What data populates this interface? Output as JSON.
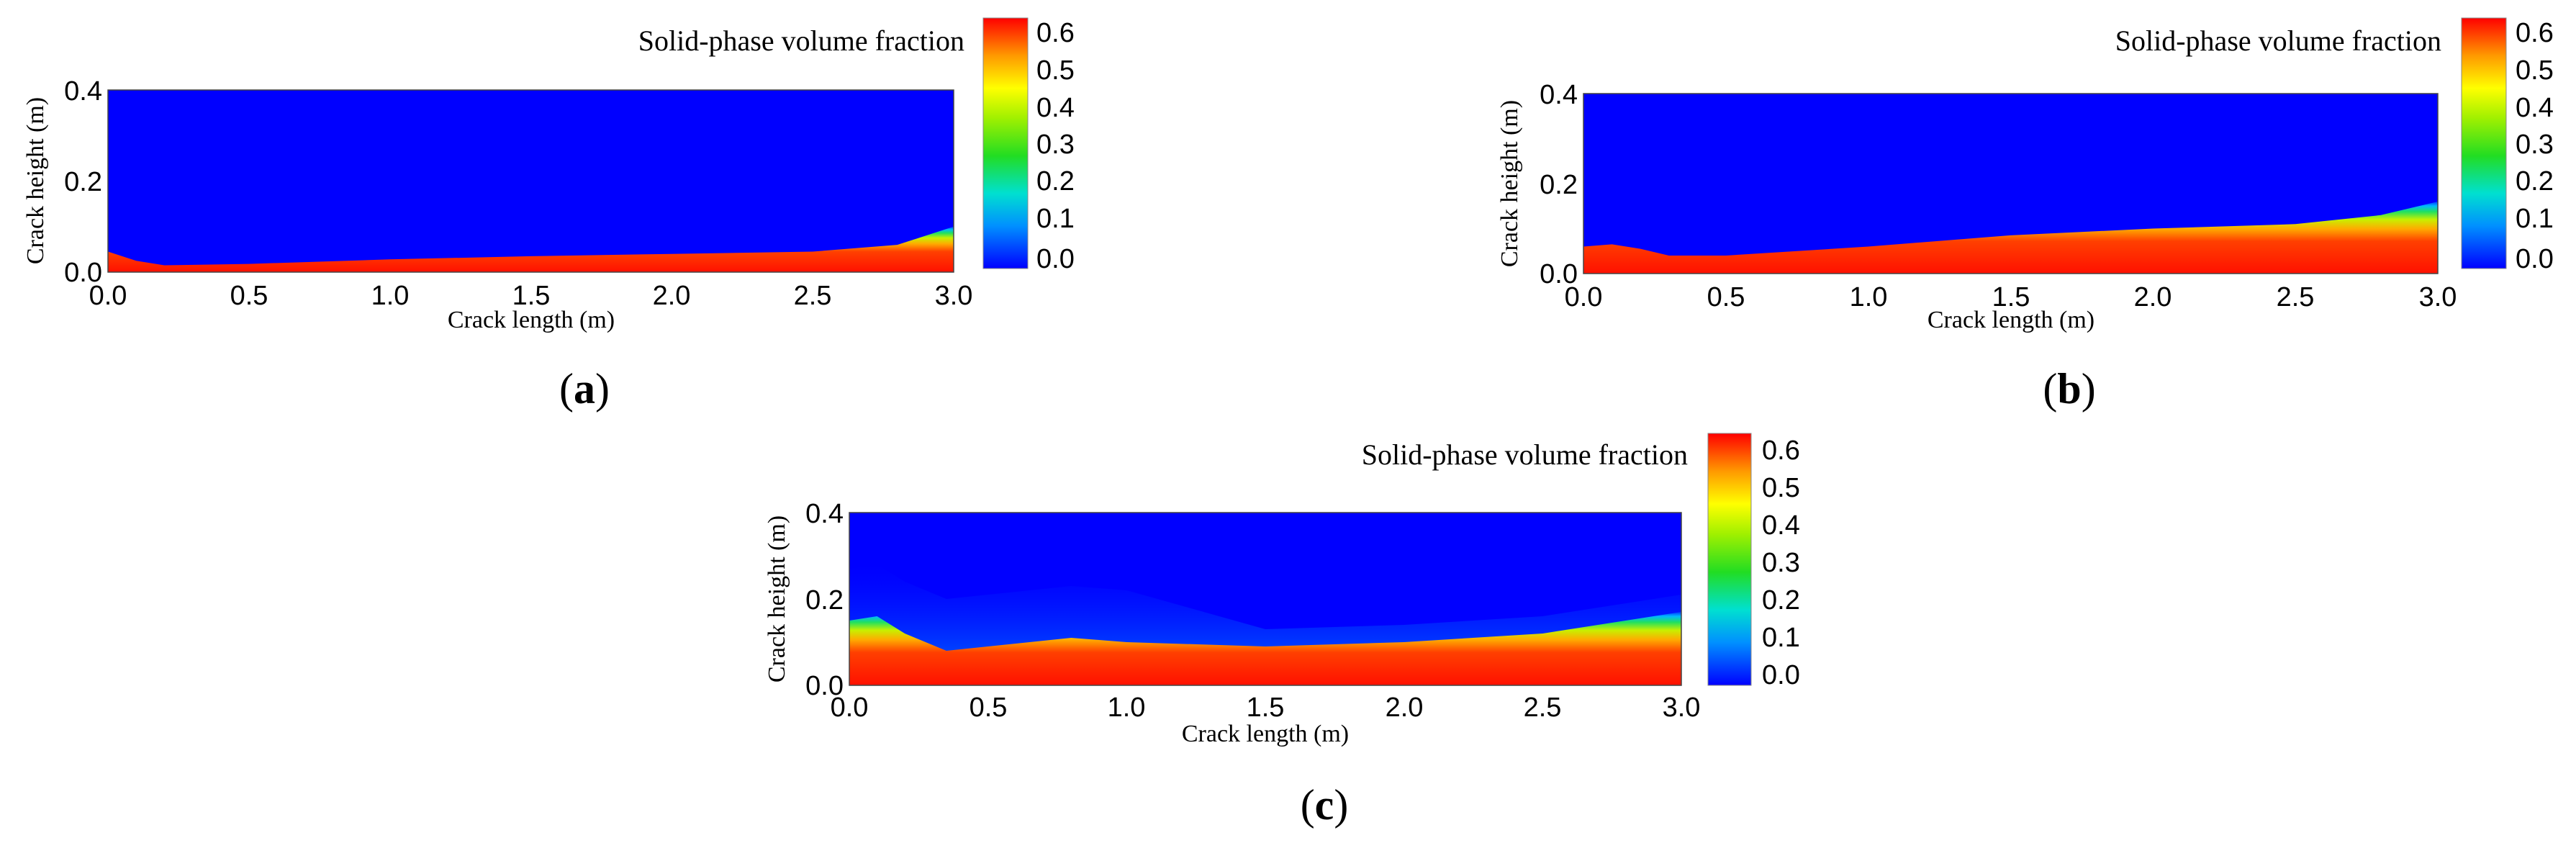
{
  "chart_data": [
    {
      "type": "heatmap",
      "panel_label": "a",
      "colorbar_title": "Solid-phase volume fraction",
      "xlabel": "Crack length (m)",
      "ylabel": "Crack height (m)",
      "xlim": [
        0.0,
        3.0
      ],
      "ylim": [
        0.0,
        0.4
      ],
      "x_ticks": [
        "0.0",
        "0.5",
        "1.0",
        "1.5",
        "2.0",
        "2.5",
        "3.0"
      ],
      "y_ticks": [
        "0.0",
        "0.2",
        "0.4"
      ],
      "colorbar_range": [
        0.0,
        0.65
      ],
      "colorbar_ticks": [
        "0.0",
        "0.1",
        "0.2",
        "0.3",
        "0.4",
        "0.5",
        "0.6"
      ],
      "bed_height_profile": {
        "x": [
          0.0,
          0.1,
          0.2,
          0.5,
          1.0,
          1.5,
          2.0,
          2.5,
          2.8,
          3.0
        ],
        "height": [
          0.045,
          0.025,
          0.015,
          0.018,
          0.028,
          0.035,
          0.04,
          0.045,
          0.06,
          0.1
        ]
      }
    },
    {
      "type": "heatmap",
      "panel_label": "b",
      "colorbar_title": "Solid-phase volume fraction",
      "xlabel": "Crack length (m)",
      "ylabel": "Crack height (m)",
      "xlim": [
        0.0,
        3.0
      ],
      "ylim": [
        0.0,
        0.4
      ],
      "x_ticks": [
        "0.0",
        "0.5",
        "1.0",
        "1.5",
        "2.0",
        "2.5",
        "3.0"
      ],
      "y_ticks": [
        "0.0",
        "0.2",
        "0.4"
      ],
      "colorbar_range": [
        0.0,
        0.65
      ],
      "colorbar_ticks": [
        "0.0",
        "0.1",
        "0.2",
        "0.3",
        "0.4",
        "0.5",
        "0.6"
      ],
      "bed_height_profile": {
        "x": [
          0.0,
          0.1,
          0.2,
          0.3,
          0.5,
          1.0,
          1.5,
          2.0,
          2.5,
          2.8,
          3.0
        ],
        "height": [
          0.06,
          0.065,
          0.055,
          0.04,
          0.04,
          0.06,
          0.085,
          0.1,
          0.11,
          0.13,
          0.16
        ]
      }
    },
    {
      "type": "heatmap",
      "panel_label": "c",
      "colorbar_title": "Solid-phase volume fraction",
      "xlabel": "Crack length (m)",
      "ylabel": "Crack height (m)",
      "xlim": [
        0.0,
        3.0
      ],
      "ylim": [
        0.0,
        0.4
      ],
      "x_ticks": [
        "0.0",
        "0.5",
        "1.0",
        "1.5",
        "2.0",
        "2.5",
        "3.0"
      ],
      "y_ticks": [
        "0.0",
        "0.2",
        "0.4"
      ],
      "colorbar_range": [
        0.0,
        0.65
      ],
      "colorbar_ticks": [
        "0.0",
        "0.1",
        "0.2",
        "0.3",
        "0.4",
        "0.5",
        "0.6"
      ],
      "bed_height_profile": {
        "x": [
          0.0,
          0.1,
          0.2,
          0.35,
          0.5,
          0.8,
          1.0,
          1.5,
          2.0,
          2.5,
          3.0
        ],
        "height": [
          0.15,
          0.16,
          0.12,
          0.08,
          0.09,
          0.11,
          0.1,
          0.09,
          0.1,
          0.12,
          0.17
        ]
      }
    }
  ]
}
